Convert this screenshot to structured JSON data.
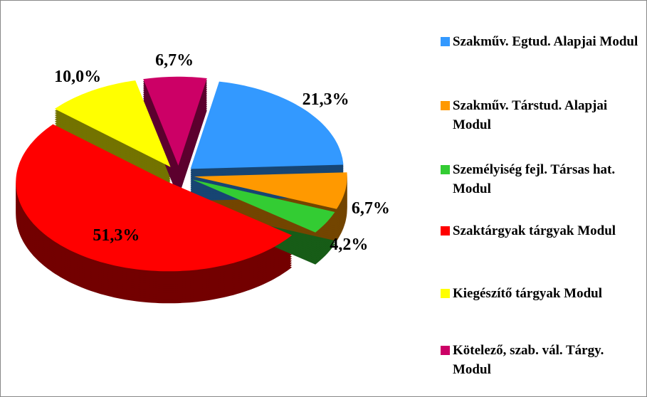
{
  "chart_data": {
    "type": "pie",
    "categories": [
      "Szakműv. Egtud. Alapjai Modul",
      "Szakműv. Társtud. Alapjai Modul",
      "Személyiség fejl. Társas hat. Modul",
      "Szaktárgyak tárgyak Modul",
      "Kiegészítő tárgyak Modul",
      "Kötelező, szab. vál. Tárgy. Modul"
    ],
    "values": [
      21.3,
      6.7,
      4.2,
      51.3,
      10.0,
      6.7
    ],
    "value_labels": [
      "21,3%",
      "6,7%",
      "4,2%",
      "51,3%",
      "10,0%",
      "6,7%"
    ],
    "colors": [
      "#3399ff",
      "#ff9900",
      "#33cc33",
      "#ff0000",
      "#ffff00",
      "#cc0066"
    ],
    "legend": "right"
  }
}
